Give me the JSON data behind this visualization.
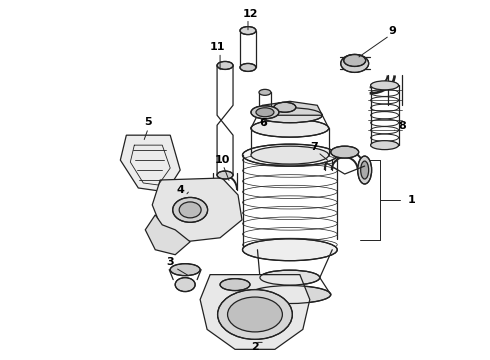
{
  "bg_color": "#ffffff",
  "line_color": "#222222",
  "label_color": "#000000",
  "font_size": 8,
  "line_width": 0.9,
  "figsize": [
    4.9,
    3.6
  ],
  "dpi": 100
}
